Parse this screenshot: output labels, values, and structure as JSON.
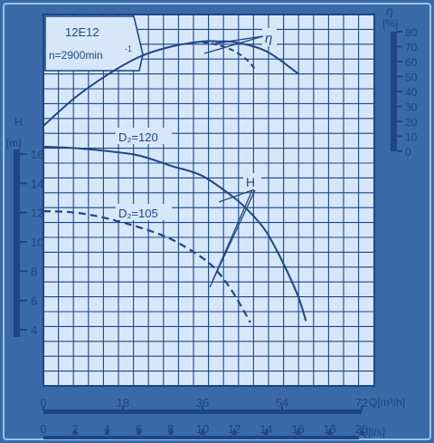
{
  "chart_data": {
    "type": "line",
    "pump_label": "12E12",
    "speed_label": "n=2900min",
    "speed_exponent": "-1",
    "head_axis": {
      "symbol": "H",
      "unit": "[m]",
      "ticks": [
        "16",
        "14",
        "12",
        "10",
        "8",
        "6",
        "4"
      ],
      "range": [
        4,
        16
      ]
    },
    "efficiency_axis": {
      "symbol": "η",
      "unit": "[%]",
      "ticks": [
        "80",
        "70",
        "60",
        "50",
        "40",
        "30",
        "20",
        "10",
        "0"
      ],
      "range": [
        0,
        80
      ]
    },
    "flow_m3h_axis": {
      "label": "Q[m³/h]",
      "ticks": [
        "0",
        "18",
        "36",
        "54",
        "72"
      ],
      "range": [
        0,
        72
      ]
    },
    "flow_ls_axis": {
      "label": "Q[l/s]",
      "ticks": [
        "0",
        "2",
        "4",
        "6",
        "8",
        "10",
        "12",
        "14",
        "16",
        "18",
        "20"
      ],
      "range": [
        0,
        20
      ]
    },
    "curve_labels": {
      "d120": "D₂=120",
      "d105": "D₂=105",
      "head": "H",
      "efficiency": "η"
    },
    "series": [
      {
        "name": "D₂=120",
        "quantity": "H",
        "unit": "m",
        "x_ls": [
          0,
          2,
          4,
          6,
          8,
          10,
          12,
          13,
          14,
          15,
          16,
          16.5
        ],
        "y": [
          16.5,
          16.4,
          16.2,
          15.9,
          15.2,
          14.5,
          13.0,
          12.0,
          10.7,
          8.7,
          6.3,
          4.6
        ]
      },
      {
        "name": "D₂=105",
        "quantity": "H",
        "unit": "m",
        "dashed": true,
        "x_ls": [
          0,
          2,
          4,
          6,
          8,
          10,
          11,
          12,
          13
        ],
        "y": [
          12.1,
          12.0,
          11.6,
          11.0,
          10.2,
          8.9,
          7.9,
          6.4,
          4.5
        ]
      },
      {
        "name": "η",
        "quantity": "η",
        "unit": "%",
        "x_ls": [
          0,
          2,
          4,
          6,
          8,
          10,
          11,
          12,
          14,
          16
        ],
        "y": [
          17,
          36,
          51,
          63,
          70,
          73.5,
          73.5,
          73,
          67,
          52
        ]
      },
      {
        "name": "η D₂=105",
        "quantity": "η",
        "unit": "%",
        "dashed": true,
        "x_ls": [
          10,
          11,
          12,
          12.8,
          13.3
        ],
        "y": [
          73,
          71,
          67,
          61,
          55
        ]
      }
    ]
  }
}
